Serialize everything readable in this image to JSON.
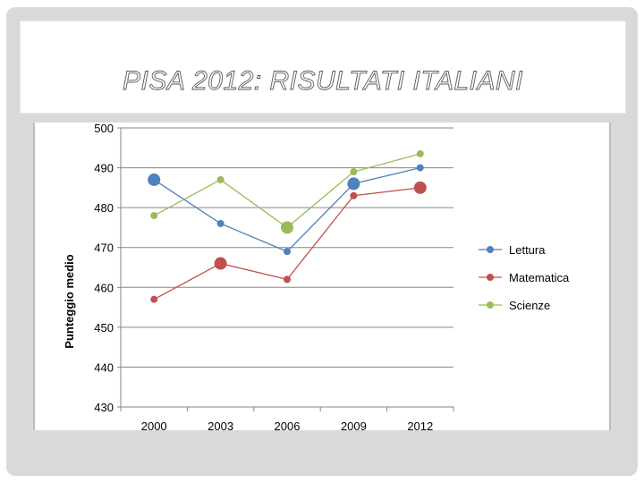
{
  "slide": {
    "title": "PISA 2012: RISULTATI ITALIANI"
  },
  "chart_data": {
    "type": "line",
    "title": "",
    "xlabel": "",
    "ylabel": "Punteggio medio",
    "categories": [
      "2000",
      "2003",
      "2006",
      "2009",
      "2012"
    ],
    "ylim": [
      430,
      500
    ],
    "yticks": [
      "430",
      "440",
      "450",
      "460",
      "470",
      "480",
      "490",
      "500"
    ],
    "grid": true,
    "legend_position": "right",
    "series": [
      {
        "name": "Lettura",
        "color": "#4f81bd",
        "values": [
          487,
          476,
          469,
          486,
          490
        ],
        "highlight": [
          true,
          false,
          false,
          true,
          false
        ]
      },
      {
        "name": "Matematica",
        "color": "#c0504d",
        "values": [
          457,
          466,
          462,
          483,
          485
        ],
        "highlight": [
          false,
          true,
          false,
          false,
          true
        ]
      },
      {
        "name": "Scienze",
        "color": "#9bbb59",
        "values": [
          478,
          487,
          475,
          489,
          493.5
        ],
        "highlight": [
          false,
          false,
          true,
          false,
          false
        ]
      }
    ]
  }
}
